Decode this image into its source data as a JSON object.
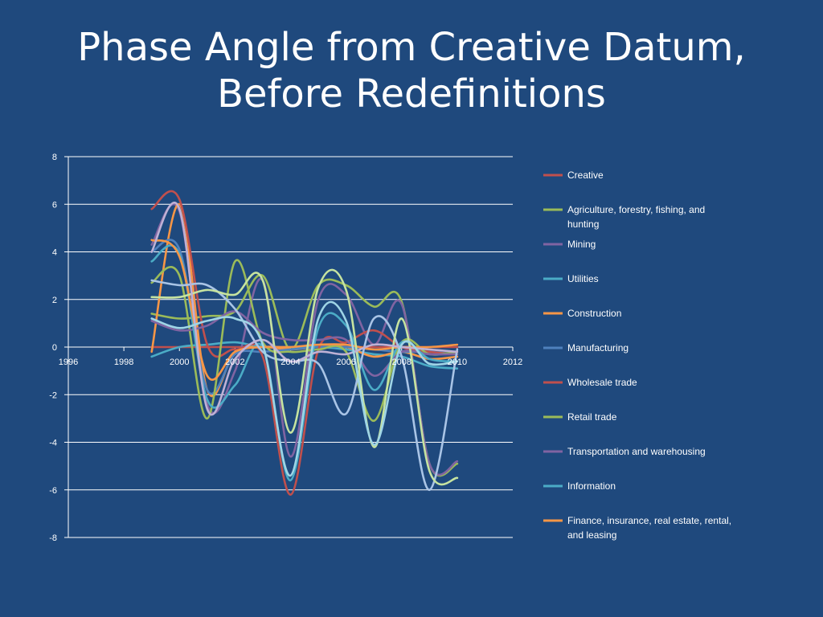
{
  "slide": {
    "title_line1": "Phase Angle from Creative Datum,",
    "title_line2": "Before Redefinitions"
  },
  "chart_data": {
    "type": "line",
    "smooth": true,
    "grid": "horizontal",
    "legend_placement": "right",
    "xlim": [
      1996,
      2012
    ],
    "ylim": [
      -8,
      8
    ],
    "x_ticks": [
      1996,
      1998,
      2000,
      2002,
      2004,
      2006,
      2008,
      2010,
      2012
    ],
    "y_ticks": [
      8,
      6,
      4,
      2,
      0,
      -2,
      -4,
      -6,
      -8
    ],
    "x": [
      1999,
      2000,
      2001,
      2002,
      2003,
      2004,
      2005,
      2006,
      2007,
      2008,
      2009,
      2010
    ],
    "series": [
      {
        "name": "Creative",
        "color": "#c0504d",
        "values": [
          0.0,
          0.0,
          0.0,
          0.0,
          0.0,
          0.0,
          0.0,
          0.0,
          0.0,
          0.0,
          0.0,
          0.0
        ]
      },
      {
        "name": "Agriculture, forestry, fishing, and hunting",
        "color": "#9bbb59",
        "values": [
          1.4,
          1.2,
          1.3,
          1.5,
          3.0,
          -0.1,
          2.6,
          2.6,
          1.7,
          1.9,
          -4.9,
          -4.9
        ]
      },
      {
        "name": "Mining",
        "color": "#8064a2",
        "values": [
          4.3,
          5.7,
          -2.4,
          -1.0,
          2.8,
          -4.6,
          2.0,
          2.2,
          0.1,
          1.8,
          -4.9,
          -4.8
        ]
      },
      {
        "name": "Utilities",
        "color": "#4bacc6",
        "values": [
          -0.4,
          0.0,
          0.1,
          0.2,
          0.0,
          0.0,
          0.0,
          -0.1,
          -0.3,
          -0.4,
          -0.8,
          -0.9
        ]
      },
      {
        "name": "Construction",
        "color": "#f79646",
        "values": [
          -0.2,
          6.0,
          -1.8,
          -0.2,
          0.0,
          -0.1,
          0.0,
          0.0,
          -0.4,
          -0.2,
          -0.5,
          -0.4
        ]
      },
      {
        "name": "Manufacturing",
        "color": "#4f81bd",
        "values": [
          4.0,
          4.1,
          -1.8,
          -0.3,
          -0.2,
          -0.1,
          0.0,
          0.0,
          -0.1,
          -0.2,
          -0.2,
          -0.3
        ]
      },
      {
        "name": "Wholesale trade",
        "color": "#c0504d",
        "values": [
          5.8,
          6.2,
          0.1,
          -0.1,
          -0.4,
          -6.2,
          -0.1,
          0.2,
          0.7,
          0.0,
          -0.2,
          -0.3
        ]
      },
      {
        "name": "Retail trade",
        "color": "#9bbb59",
        "values": [
          2.7,
          3.0,
          -3.0,
          3.6,
          0.2,
          -0.2,
          -0.1,
          -0.2,
          -3.1,
          0.2,
          -0.3,
          -0.2
        ]
      },
      {
        "name": "Transportation and warehousing",
        "color": "#8064a2",
        "values": [
          1.1,
          0.7,
          0.9,
          1.5,
          0.6,
          0.3,
          0.3,
          0.3,
          -1.2,
          -0.2,
          -0.3,
          -0.3
        ]
      },
      {
        "name": "Information",
        "color": "#4bacc6",
        "values": [
          3.6,
          3.9,
          -2.2,
          -1.6,
          0.0,
          -5.6,
          0.8,
          0.9,
          -1.8,
          0.2,
          -0.5,
          -0.6
        ]
      },
      {
        "name": "Finance, insurance, real estate, rental, and leasing",
        "color": "#f79646",
        "values": [
          4.5,
          3.8,
          -1.2,
          -0.2,
          0.0,
          0.0,
          0.1,
          0.1,
          -0.1,
          0.0,
          0.0,
          0.1
        ]
      },
      {
        "name": "",
        "color": "#a9c4e6",
        "values": [
          2.8,
          2.6,
          2.6,
          1.6,
          -0.2,
          -0.6,
          -0.7,
          -2.8,
          1.2,
          -0.4,
          -6.0,
          -0.1
        ]
      },
      {
        "name": "",
        "color": "#c6e3a0",
        "values": [
          2.1,
          2.1,
          2.4,
          2.2,
          2.8,
          -3.6,
          2.5,
          2.4,
          -4.2,
          1.2,
          -5.2,
          -5.5
        ]
      },
      {
        "name": "",
        "color": "#bfb1d5",
        "values": [
          4.0,
          5.8,
          -2.6,
          -0.5,
          0.3,
          -0.6,
          -0.2,
          -0.3,
          0.1,
          0.0,
          -0.1,
          -0.2
        ]
      },
      {
        "name": "",
        "color": "#9fd5e6",
        "values": [
          1.2,
          0.8,
          1.1,
          1.2,
          0.1,
          -5.4,
          1.2,
          1.1,
          -4.1,
          0.1,
          -0.7,
          -0.6
        ]
      }
    ]
  }
}
